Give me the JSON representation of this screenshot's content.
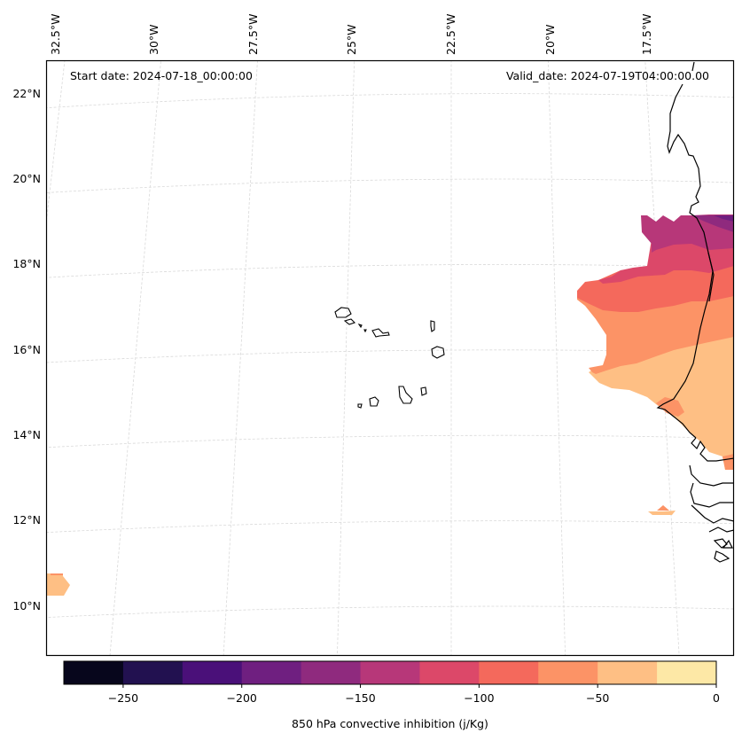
{
  "chart_data": {
    "type": "map",
    "title": "",
    "annotations": {
      "start_date": "Start date: 2024-07-18_00:00:00",
      "valid_date": "Valid_date: 2024-07-19T04:00:00.00"
    },
    "projection": "Lambert-like conic (curved graticule)",
    "extent": {
      "lon": [
        -32.7,
        -15.6
      ],
      "lat": [
        8.8,
        22.9
      ]
    },
    "lon_ticks": [
      {
        "value": -32.5,
        "label": "32.5°W"
      },
      {
        "value": -30,
        "label": "30°W"
      },
      {
        "value": -27.5,
        "label": "27.5°W"
      },
      {
        "value": -25,
        "label": "25°W"
      },
      {
        "value": -22.5,
        "label": "22.5°W"
      },
      {
        "value": -20,
        "label": "20°W"
      },
      {
        "value": -17.5,
        "label": "17.5°W"
      }
    ],
    "lat_ticks": [
      {
        "value": 22,
        "label": "22°N"
      },
      {
        "value": 20,
        "label": "20°N"
      },
      {
        "value": 18,
        "label": "18°N"
      },
      {
        "value": 16,
        "label": "16°N"
      },
      {
        "value": 14,
        "label": "14°N"
      },
      {
        "value": 12,
        "label": "12°N"
      },
      {
        "value": 10,
        "label": "10°N"
      }
    ],
    "gridlines": true,
    "field": {
      "name": "850 hPa convective inhibition",
      "units": "j/Kg",
      "levels": [
        -275,
        -250,
        -225,
        -200,
        -175,
        -150,
        -125,
        -100,
        -75,
        -50,
        -25,
        0
      ],
      "colors": [
        "#07061c",
        "#221150",
        "#4a1079",
        "#6f1f80",
        "#8f2a7e",
        "#b73779",
        "#dc4869",
        "#f4695c",
        "#fc9366",
        "#febf84",
        "#fde8a6"
      ],
      "colormap": "magma",
      "regions": [
        {
          "description": "Mauritania/Western Sahara band near 19°N",
          "value_range": [
            -175,
            -125
          ]
        },
        {
          "description": "Mauritania coast 17-18°N",
          "value_range": [
            -125,
            -100
          ]
        },
        {
          "description": "Mauritania/Senegal 15-17°N",
          "value_range": [
            -100,
            -50
          ]
        },
        {
          "description": "Senegal interior ~14-15°N",
          "value_range": [
            -50,
            -25
          ]
        },
        {
          "description": "Small patch near 12.2°N 18°W",
          "value_range": [
            -75,
            -25
          ]
        },
        {
          "description": "Patch at western edge ~10.5°N",
          "value_range": [
            -50,
            -25
          ]
        }
      ]
    },
    "colorbar": {
      "orientation": "horizontal",
      "ticks": [
        {
          "value": -250,
          "label": "−250"
        },
        {
          "value": -200,
          "label": "−200"
        },
        {
          "value": -150,
          "label": "−150"
        },
        {
          "value": -100,
          "label": "−100"
        },
        {
          "value": -50,
          "label": "−50"
        },
        {
          "value": 0,
          "label": "0"
        }
      ],
      "range": [
        -275,
        0
      ],
      "label": "850 hPa convective inhibition (j/Kg)"
    },
    "features": [
      "coastlines",
      "Cape Verde islands",
      "country borders"
    ]
  }
}
